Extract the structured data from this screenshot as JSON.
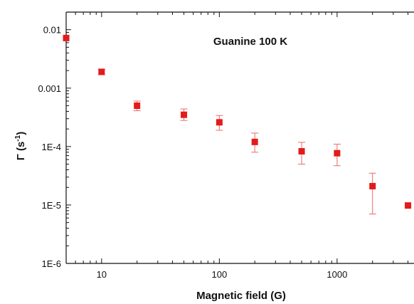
{
  "chart_data": {
    "type": "scatter",
    "xlabel": "Magnetic field (G)",
    "ylabel_main": "Γ (s",
    "ylabel_sup": "-1",
    "ylabel_close": ")",
    "annotation": "Guanine 100 K",
    "xscale": "log",
    "yscale": "log",
    "xlim": [
      5,
      4500
    ],
    "ylim": [
      1e-06,
      0.02
    ],
    "x_ticks": [
      {
        "value": 10,
        "label": "10"
      },
      {
        "value": 100,
        "label": "100"
      },
      {
        "value": 1000,
        "label": "1000"
      }
    ],
    "y_ticks": [
      {
        "value": 0.01,
        "label": "0.01"
      },
      {
        "value": 0.001,
        "label": "0.001"
      },
      {
        "value": 0.0001,
        "label": "1E-4"
      },
      {
        "value": 1e-05,
        "label": "1E-5"
      },
      {
        "value": 1e-06,
        "label": "1E-6"
      }
    ],
    "grid": false,
    "marker_color": "#e31b1b",
    "errorbar_color": "#e86a6a",
    "points": [
      {
        "x": 5,
        "y": 0.0072,
        "ylo": 0.0072,
        "yhi": 0.0072
      },
      {
        "x": 10,
        "y": 0.0019,
        "ylo": 0.0017,
        "yhi": 0.0021
      },
      {
        "x": 20,
        "y": 0.0005,
        "ylo": 0.00041,
        "yhi": 0.0006
      },
      {
        "x": 50,
        "y": 0.00035,
        "ylo": 0.00028,
        "yhi": 0.00044
      },
      {
        "x": 100,
        "y": 0.00026,
        "ylo": 0.00019,
        "yhi": 0.00034
      },
      {
        "x": 200,
        "y": 0.00012,
        "ylo": 8e-05,
        "yhi": 0.00017
      },
      {
        "x": 500,
        "y": 8.3e-05,
        "ylo": 5e-05,
        "yhi": 0.000118
      },
      {
        "x": 1000,
        "y": 7.7e-05,
        "ylo": 4.7e-05,
        "yhi": 0.00011
      },
      {
        "x": 2000,
        "y": 2.1e-05,
        "ylo": 7e-06,
        "yhi": 3.5e-05
      },
      {
        "x": 4000,
        "y": 9.8e-06,
        "ylo": 9.8e-06,
        "yhi": 9.8e-06
      }
    ]
  }
}
